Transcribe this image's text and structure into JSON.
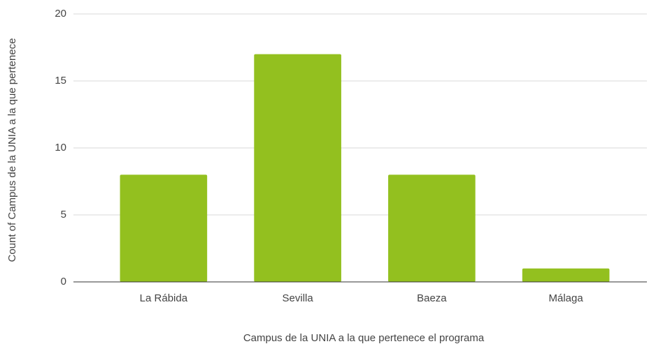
{
  "chart_data": {
    "type": "bar",
    "x_label": "Campus de la UNIA a la que pertenece el programa",
    "y_label": "Count of Campus de la UNIA a la que pertenece",
    "categories": [
      "La Rábida",
      "Sevilla",
      "Baeza",
      "Málaga"
    ],
    "values": [
      8,
      17,
      8,
      1
    ],
    "color": "#93c01f",
    "ylim": [
      0,
      20
    ],
    "yticks": [
      0,
      5,
      10,
      15,
      20
    ],
    "grid": true
  }
}
